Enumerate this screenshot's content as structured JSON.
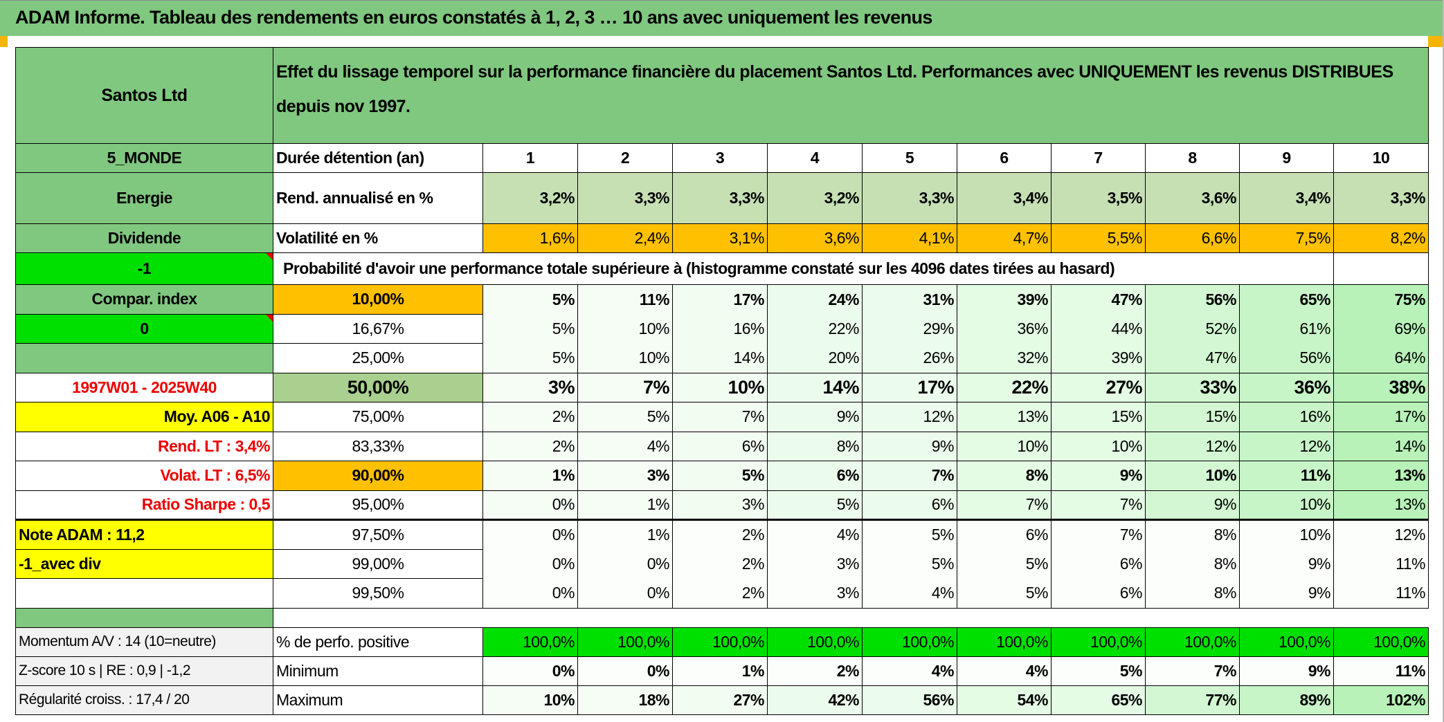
{
  "title": "ADAM Informe. Tableau des rendements en euros constatés à 1, 2, 3 … 10 ans avec uniquement les revenus",
  "header": {
    "asset": "Santos Ltd",
    "description": "Effet du lissage temporel sur la performance financière du placement Santos Ltd. Performances avec UNIQUEMENT les revenus DISTRIBUES depuis nov 1997."
  },
  "colors": {
    "green_header": "#80c880",
    "bright_green": "#00e000",
    "orange": "#ffc000",
    "yellow": "#ffff00",
    "red_text": "#ee0000",
    "light_green": "#c6e0b4",
    "mid_green": "#a9d08e",
    "grey": "#f2f2f2"
  },
  "duration": {
    "label": "Durée détention (an)",
    "years": [
      "1",
      "2",
      "3",
      "4",
      "5",
      "6",
      "7",
      "8",
      "9",
      "10"
    ],
    "left": "5_MONDE"
  },
  "rend": {
    "label": "Rend. annualisé en %",
    "values": [
      "3,2%",
      "3,3%",
      "3,3%",
      "3,2%",
      "3,3%",
      "3,4%",
      "3,5%",
      "3,6%",
      "3,4%",
      "3,3%"
    ],
    "left": "Energie"
  },
  "vol": {
    "label": "Volatilité en %",
    "values": [
      "1,6%",
      "2,4%",
      "3,1%",
      "3,6%",
      "4,1%",
      "4,7%",
      "5,5%",
      "6,6%",
      "7,5%",
      "8,2%"
    ],
    "left": "Dividende"
  },
  "prob": {
    "label": "Probabilité d'avoir une performance totale supérieure à (histogramme constaté sur les 4096 dates tirées au hasard)",
    "left": "-1"
  },
  "column_tints": [
    "#f5fdf5",
    "#f5fdf5",
    "#f2fdf2",
    "#ecfcec",
    "#ecfcec",
    "#e4fbe4",
    "#e4fbe4",
    "#d2f7d2",
    "#c8f5c8",
    "#b8f2b8"
  ],
  "prob_rows": [
    {
      "left": "Compar. index",
      "left_bg": "#80c880",
      "left_color": "#000",
      "left_align": "c",
      "threshold": "10,00%",
      "thr_bg": "#ffc000",
      "bold": true,
      "values": [
        "5%",
        "11%",
        "17%",
        "24%",
        "31%",
        "39%",
        "47%",
        "56%",
        "65%",
        "75%"
      ]
    },
    {
      "left": "0",
      "left_bg": "#00e000",
      "left_color": "#000",
      "left_align": "c",
      "marker": true,
      "threshold": "16,67%",
      "values": [
        "5%",
        "10%",
        "16%",
        "22%",
        "29%",
        "36%",
        "44%",
        "52%",
        "61%",
        "69%"
      ]
    },
    {
      "left": "",
      "left_bg": "#80c880",
      "left_color": "#000",
      "left_align": "c",
      "threshold": "25,00%",
      "values": [
        "5%",
        "10%",
        "14%",
        "20%",
        "26%",
        "32%",
        "39%",
        "47%",
        "56%",
        "64%"
      ]
    },
    {
      "left": "1997W01 - 2025W40",
      "left_bg": "#ffffff",
      "left_color": "#ee0000",
      "left_align": "c",
      "threshold": "50,00%",
      "thr_bg": "#a9d08e",
      "bold": true,
      "big": true,
      "values": [
        "3%",
        "7%",
        "10%",
        "14%",
        "17%",
        "22%",
        "27%",
        "33%",
        "36%",
        "38%"
      ]
    },
    {
      "left": "Moy. A06 - A10",
      "left_bg": "#ffff00",
      "left_color": "#000",
      "left_align": "r",
      "threshold": "75,00%",
      "values": [
        "2%",
        "5%",
        "7%",
        "9%",
        "12%",
        "13%",
        "15%",
        "15%",
        "16%",
        "17%"
      ]
    },
    {
      "left": "Rend. LT :   3,4%",
      "left_bg": "#ffffff",
      "left_color": "#ee0000",
      "left_align": "r",
      "threshold": "83,33%",
      "values": [
        "2%",
        "4%",
        "6%",
        "8%",
        "9%",
        "10%",
        "10%",
        "12%",
        "12%",
        "14%"
      ]
    },
    {
      "left": "Volat. LT :   6,5%",
      "left_bg": "#ffffff",
      "left_color": "#ee0000",
      "left_align": "r",
      "threshold": "90,00%",
      "thr_bg": "#ffc000",
      "bold": true,
      "values": [
        "1%",
        "3%",
        "5%",
        "6%",
        "7%",
        "8%",
        "9%",
        "10%",
        "11%",
        "13%"
      ]
    },
    {
      "left": "Ratio Sharpe :   0,5",
      "left_bg": "#ffffff",
      "left_color": "#ee0000",
      "left_align": "r",
      "threshold": "95,00%",
      "thick": true,
      "values": [
        "0%",
        "1%",
        "3%",
        "5%",
        "6%",
        "7%",
        "7%",
        "9%",
        "10%",
        "13%"
      ]
    },
    {
      "left": "Note ADAM : 11,2",
      "left_bg": "#ffff00",
      "left_color": "#000",
      "left_align": "l",
      "threshold": "97,50%",
      "values": [
        "0%",
        "1%",
        "2%",
        "4%",
        "5%",
        "6%",
        "7%",
        "8%",
        "10%",
        "12%"
      ]
    },
    {
      "left": "-1_avec div",
      "left_bg": "#ffff00",
      "left_color": "#000",
      "left_align": "l",
      "threshold": "99,00%",
      "values": [
        "0%",
        "0%",
        "2%",
        "3%",
        "5%",
        "5%",
        "6%",
        "8%",
        "9%",
        "11%"
      ]
    },
    {
      "left": "",
      "left_bg": "#ffffff",
      "left_color": "#000",
      "left_align": "l",
      "threshold": "99,50%",
      "values": [
        "0%",
        "0%",
        "2%",
        "3%",
        "4%",
        "5%",
        "6%",
        "8%",
        "9%",
        "11%"
      ]
    }
  ],
  "bottom_rows": [
    {
      "left": "Momentum A/V : 14 (10=neutre)",
      "label": "% de perfo. positive",
      "bg": "#00e000",
      "values": [
        "100,0%",
        "100,0%",
        "100,0%",
        "100,0%",
        "100,0%",
        "100,0%",
        "100,0%",
        "100,0%",
        "100,0%",
        "100,0%"
      ]
    },
    {
      "left": "Z-score 10 s | RE : 0,9 | -1,2",
      "label": "Minimum",
      "bold": true,
      "values": [
        "0%",
        "0%",
        "1%",
        "2%",
        "4%",
        "4%",
        "5%",
        "7%",
        "9%",
        "11%"
      ]
    },
    {
      "left": "Régularité croiss. : 17,4 / 20",
      "label": "Maximum",
      "bold": true,
      "tinted": true,
      "values": [
        "10%",
        "18%",
        "27%",
        "42%",
        "56%",
        "54%",
        "65%",
        "77%",
        "89%",
        "102%"
      ]
    }
  ]
}
